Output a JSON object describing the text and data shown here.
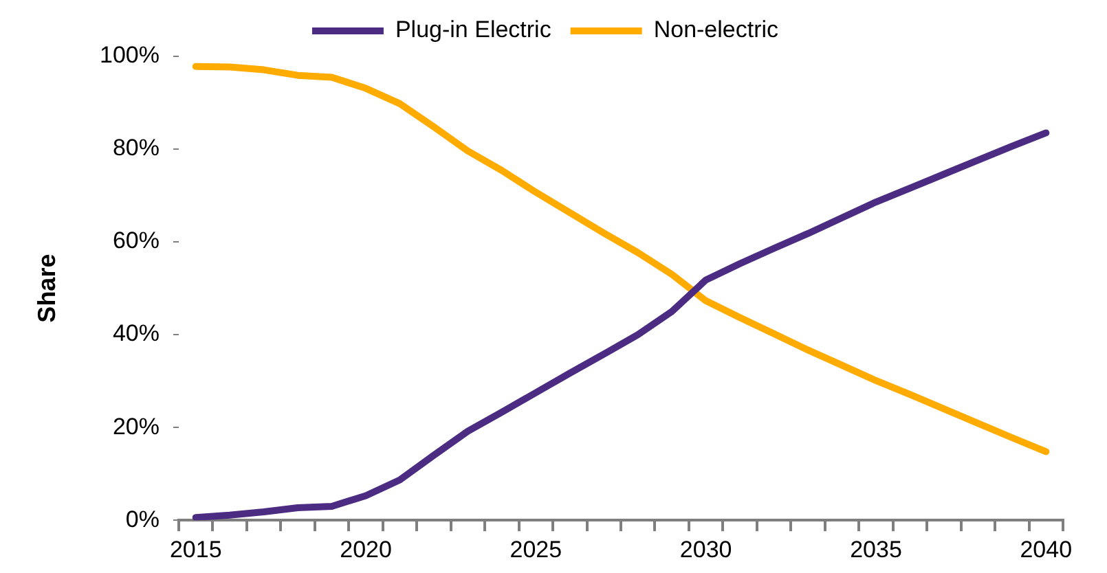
{
  "chart_data": {
    "type": "line",
    "ylabel": "Share",
    "categories": [
      "2015",
      null,
      null,
      null,
      null,
      "2020",
      null,
      null,
      null,
      null,
      "2025",
      null,
      null,
      null,
      null,
      "2030",
      null,
      null,
      null,
      null,
      "2035",
      null,
      null,
      null,
      null,
      "2040"
    ],
    "series": [
      {
        "name": "Plug-in Electric",
        "color": "#4b2c82",
        "values": [
          0.6,
          1.1,
          1.8,
          2.7,
          3,
          5.3,
          8.7,
          14,
          19.2,
          23.3,
          27.5,
          31.7,
          35.8,
          40,
          45,
          51.8,
          55.3,
          58.6,
          61.8,
          65.2,
          68.6,
          71.6,
          74.6,
          77.6,
          80.6,
          83.5
        ]
      },
      {
        "name": "Non-electric",
        "color": "#ffab00",
        "values": [
          97.8,
          97.7,
          97.1,
          95.9,
          95.5,
          93.1,
          89.8,
          84.8,
          79.6,
          75.4,
          70.7,
          66.3,
          61.9,
          57.7,
          53,
          47.3,
          43.7,
          40.2,
          36.7,
          33.4,
          30.1,
          27.1,
          24,
          20.9,
          17.8,
          14.8
        ]
      }
    ],
    "ylim": [
      0,
      100
    ],
    "yticks": [
      {
        "value": 0,
        "label": "0%"
      },
      {
        "value": 20,
        "label": "20%"
      },
      {
        "value": 40,
        "label": "40%"
      },
      {
        "value": 60,
        "label": "60%"
      },
      {
        "value": 80,
        "label": "80%"
      },
      {
        "value": 100,
        "label": "100%"
      }
    ],
    "grid": false,
    "legend": "top",
    "marker": "none",
    "line_style": "solid"
  }
}
